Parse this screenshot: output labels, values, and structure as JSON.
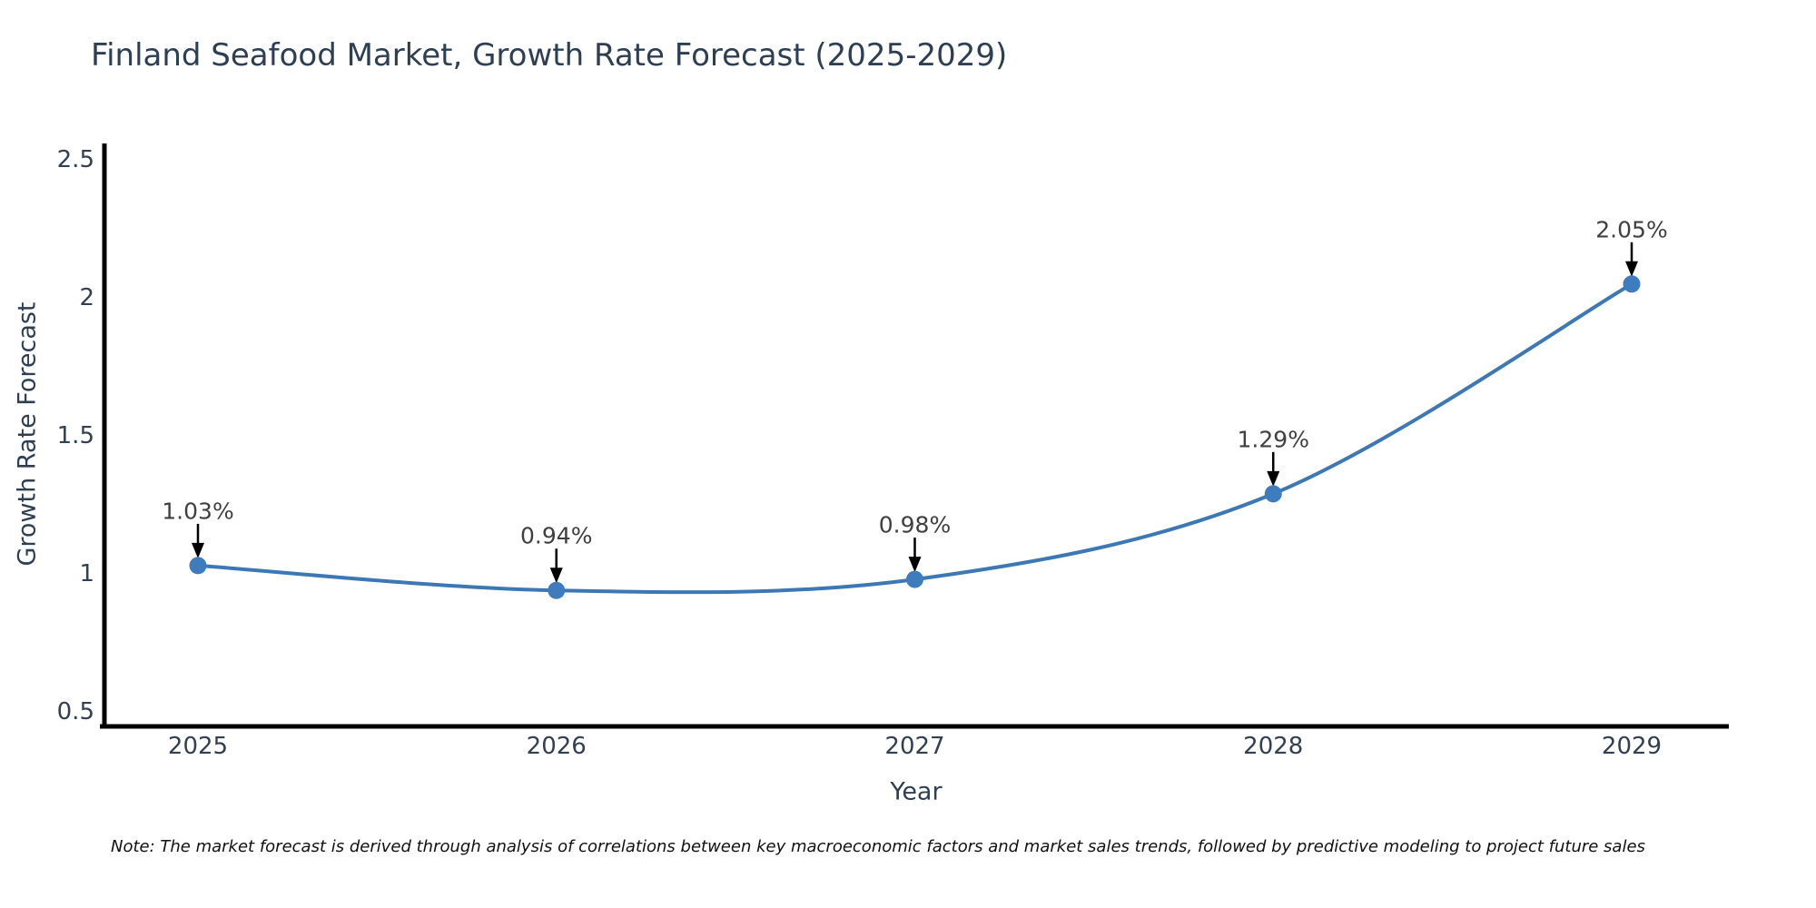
{
  "chart": {
    "title": "Finland Seafood Market, Growth Rate Forecast (2025-2029)",
    "xlabel": "Year",
    "ylabel": "Growth Rate Forecast",
    "note": "Note: The market forecast is derived through analysis of correlations between key macroeconomic factors and market sales trends, followed by predictive modeling to project future sales",
    "colors": {
      "line": "#3c78b4",
      "marker": "#3e7cbe",
      "axis": "#000000",
      "arrow": "#000000",
      "title_text": "#2e3f54",
      "tick_text": "#33404f",
      "annotation_text": "#404040",
      "note_text": "#111111"
    }
  },
  "chart_data": {
    "type": "line",
    "title": "Finland Seafood Market, Growth Rate Forecast (2025-2029)",
    "xlabel": "Year",
    "ylabel": "Growth Rate Forecast",
    "x": [
      2025,
      2026,
      2027,
      2028,
      2029
    ],
    "values": [
      1.03,
      0.94,
      0.98,
      1.29,
      2.05
    ],
    "annotations": [
      "1.03%",
      "0.94%",
      "0.98%",
      "1.29%",
      "2.05%"
    ],
    "xtick_labels": [
      "2025",
      "2026",
      "2027",
      "2028",
      "2029"
    ],
    "yticks": [
      0.5,
      1,
      1.5,
      2,
      2.5
    ],
    "ytick_labels": [
      "0.5",
      "1",
      "1.5",
      "2",
      "2.5"
    ],
    "ylim": [
      0.45,
      2.55
    ],
    "line_shape": "spline",
    "grid": false,
    "legend_position": "none",
    "units": "percent"
  }
}
